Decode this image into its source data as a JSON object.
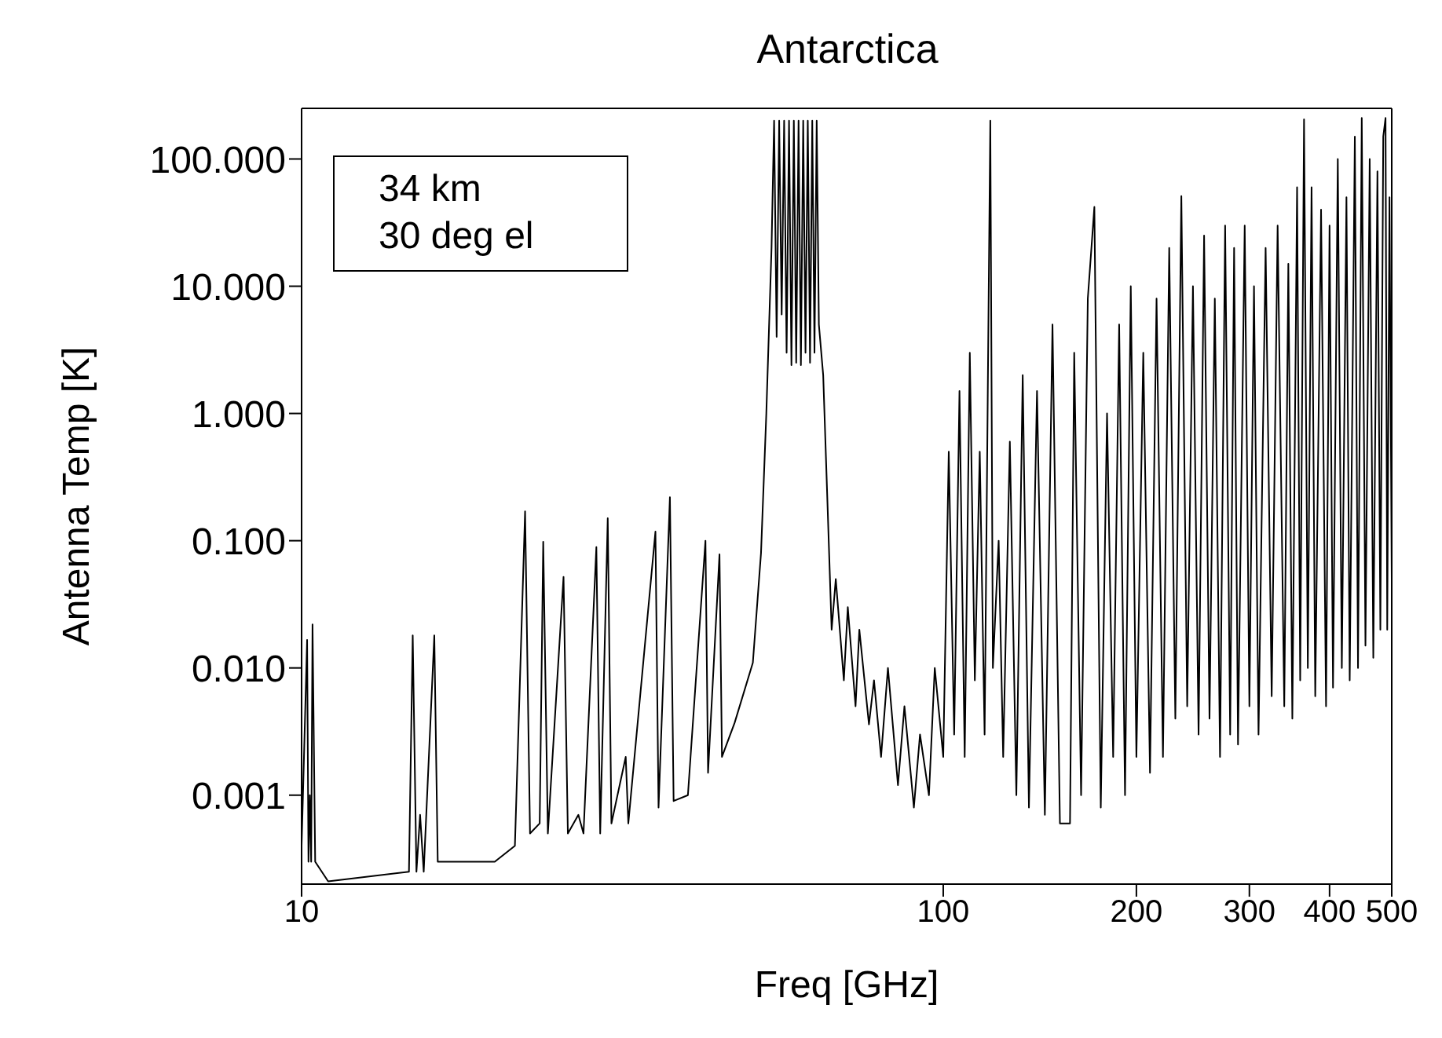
{
  "chart_data": {
    "type": "line",
    "title": "Antarctica",
    "xlabel": "Freq [GHz]",
    "ylabel": "Antenna Temp [K]",
    "annotations": [
      "34 km",
      "30 deg el"
    ],
    "log": "xy",
    "grid": false,
    "legend": false,
    "marker": "none",
    "line_style": "solid",
    "xlim": [
      10,
      500
    ],
    "xticks": [
      10,
      100,
      200,
      300,
      400,
      500
    ],
    "ylim": [
      0.0002,
      250
    ],
    "yticks": [
      {
        "value": 0.001,
        "label": "0.001"
      },
      {
        "value": 0.01,
        "label": "0.010"
      },
      {
        "value": 0.1,
        "label": "0.100"
      },
      {
        "value": 1,
        "label": "1.000"
      },
      {
        "value": 10,
        "label": "10.000"
      },
      {
        "value": 100,
        "label": "100.000"
      }
    ],
    "x": [
      10,
      10.2,
      10.25,
      10.3,
      10.35,
      10.4,
      10.5,
      11,
      14.7,
      14.9,
      15.1,
      15.3,
      15.5,
      16.1,
      16.3,
      18,
      20,
      21.5,
      22.3,
      22.7,
      23.5,
      23.8,
      24.2,
      25.6,
      26,
      27,
      27.5,
      28.8,
      29.2,
      30,
      30.4,
      32,
      32.3,
      35.6,
      36,
      37.5,
      38,
      40,
      42.6,
      43,
      44.8,
      45.2,
      47.3,
      50.5,
      52,
      53,
      54,
      54.5,
      55,
      55.5,
      56,
      56.5,
      57,
      57.5,
      58,
      58.5,
      59,
      59.5,
      60,
      60.5,
      61,
      61.5,
      62,
      62.5,
      63,
      63.5,
      64,
      65,
      66,
      67,
      68,
      70,
      71,
      73,
      74,
      76.6,
      78,
      80,
      82,
      85,
      87,
      90,
      92,
      95,
      97,
      100,
      102,
      104,
      106,
      108,
      110,
      112,
      114,
      116,
      118.4,
      119.5,
      122,
      124,
      127,
      130,
      133,
      136,
      140,
      144,
      148,
      152,
      157.6,
      160,
      164,
      168,
      172,
      176,
      180,
      184,
      188,
      192,
      196,
      200,
      205,
      210,
      215,
      220,
      225,
      230,
      235,
      240,
      245,
      250,
      255,
      260,
      265,
      270,
      275,
      280,
      284,
      288,
      295,
      300,
      305,
      310,
      318,
      325,
      332,
      340,
      345,
      350,
      356,
      360,
      365,
      370,
      375,
      380,
      388,
      395,
      400,
      405,
      412,
      418,
      425,
      430,
      438,
      443,
      449,
      455,
      462,
      468,
      475,
      480,
      485,
      489,
      492,
      496,
      500
    ],
    "series": [
      {
        "color": "#000000",
        "values": [
          0.0004,
          0.0166,
          0.0003,
          0.001,
          0.0003,
          0.022,
          0.0003,
          0.00021,
          0.00025,
          0.018,
          0.00025,
          0.0007,
          0.00025,
          0.018,
          0.0003,
          0.0003,
          0.0003,
          0.0004,
          0.17,
          0.0005,
          0.0006,
          0.098,
          0.0005,
          0.052,
          0.0005,
          0.0007,
          0.0005,
          0.089,
          0.0005,
          0.15,
          0.0006,
          0.002,
          0.0006,
          0.118,
          0.0008,
          0.22,
          0.0009,
          0.001,
          0.1,
          0.0015,
          0.078,
          0.002,
          0.0037,
          0.011,
          0.08,
          1,
          20,
          200,
          4,
          200,
          6,
          200,
          3,
          200,
          2.4,
          200,
          2.5,
          200,
          2.4,
          200,
          3,
          200,
          2.5,
          200,
          3,
          200,
          5,
          2,
          0.2,
          0.02,
          0.05,
          0.008,
          0.03,
          0.005,
          0.02,
          0.0036,
          0.008,
          0.002,
          0.01,
          0.0012,
          0.005,
          0.0008,
          0.003,
          0.001,
          0.01,
          0.002,
          0.5,
          0.003,
          1.5,
          0.002,
          3,
          0.008,
          0.5,
          0.003,
          200,
          0.01,
          0.1,
          0.002,
          0.6,
          0.001,
          2,
          0.0008,
          1.5,
          0.0007,
          5,
          0.0006,
          0.0006,
          3,
          0.001,
          8,
          42,
          0.0008,
          1,
          0.002,
          5,
          0.001,
          10,
          0.002,
          3,
          0.0015,
          8,
          0.002,
          20,
          0.004,
          51,
          0.005,
          10,
          0.003,
          25,
          0.004,
          8,
          0.002,
          30,
          0.003,
          20,
          0.0025,
          30,
          0.005,
          10,
          0.003,
          20,
          0.006,
          30,
          0.005,
          15,
          0.004,
          60,
          0.008,
          205,
          0.01,
          60,
          0.006,
          40,
          0.005,
          30,
          0.007,
          100,
          0.01,
          50,
          0.008,
          150,
          0.01,
          210,
          0.015,
          100,
          0.012,
          80,
          0.02,
          150,
          210,
          0.02,
          50,
          0.05
        ]
      }
    ]
  }
}
